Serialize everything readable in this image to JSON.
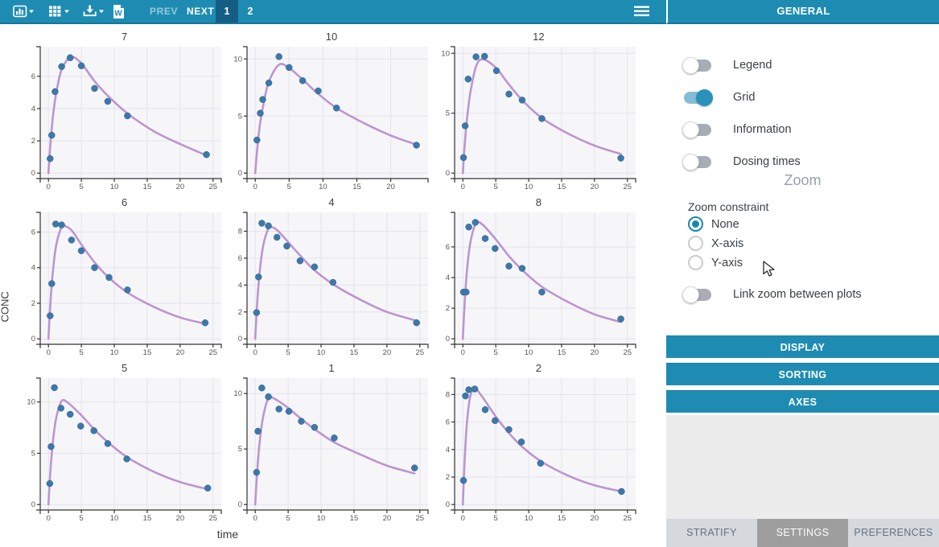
{
  "toolbar": {
    "icons": [
      {
        "name": "chart-type-menu",
        "glyph": "bar-chart"
      },
      {
        "name": "table-menu",
        "glyph": "grid-table"
      },
      {
        "name": "export-menu",
        "glyph": "download"
      },
      {
        "name": "word-report",
        "glyph": "word-document"
      }
    ],
    "prev_label": "PREV",
    "next_label": "NEXT",
    "pages": [
      "1",
      "2"
    ],
    "active_page": "1"
  },
  "sidebar": {
    "header": "GENERAL",
    "toggles": [
      {
        "label": "Legend",
        "on": false
      },
      {
        "label": "Grid",
        "on": true
      },
      {
        "label": "Information",
        "on": false
      },
      {
        "label": "Dosing times",
        "on": false
      }
    ],
    "zoom_section": {
      "title": "Zoom",
      "constraint_label": "Zoom constraint",
      "options": [
        {
          "label": "None",
          "selected": true
        },
        {
          "label": "X-axis",
          "selected": false
        },
        {
          "label": "Y-axis",
          "selected": false
        }
      ],
      "link_toggle": {
        "label": "Link zoom between plots",
        "on": false
      }
    },
    "accordions": [
      {
        "label": "DISPLAY"
      },
      {
        "label": "SORTING"
      },
      {
        "label": "AXES"
      }
    ],
    "tabs": [
      {
        "label": "STRATIFY",
        "active": false
      },
      {
        "label": "SETTINGS",
        "active": true
      },
      {
        "label": "PREFERENCES",
        "active": false
      }
    ]
  },
  "colors": {
    "toolbar": "#1e8cb2",
    "accent": "#1b87ad",
    "fit_line": "#b78ccb",
    "observation_point": "#3d78a8",
    "panel_bg": "#f6f6f9",
    "grid_line": "#e3e3ea"
  },
  "chart_data": {
    "type": "scatter",
    "xlabel": "time",
    "ylabel": "CONC",
    "grid": true,
    "legend": false,
    "xticks_default": [
      0,
      5,
      10,
      15,
      20,
      25
    ],
    "xlim_default": [
      0,
      25
    ],
    "series_note": "blue dots = observed concentrations, purple curve = individual model fit",
    "subplots": [
      {
        "id": "7",
        "xlim": [
          0,
          25
        ],
        "xticks": [
          0,
          5,
          10,
          15,
          20,
          25
        ],
        "ylim": [
          0,
          7.5
        ],
        "yticks": [
          0,
          2,
          4,
          6
        ],
        "points": [
          [
            0.25,
            0.9
          ],
          [
            0.5,
            2.35
          ],
          [
            1,
            5.05
          ],
          [
            2,
            6.6
          ],
          [
            3.3,
            7.15
          ],
          [
            5,
            6.65
          ],
          [
            7,
            5.25
          ],
          [
            9,
            4.45
          ],
          [
            12,
            3.55
          ],
          [
            24,
            1.15
          ]
        ],
        "line": [
          [
            0,
            0
          ],
          [
            0.3,
            1.8
          ],
          [
            0.7,
            3.6
          ],
          [
            1.2,
            5.0
          ],
          [
            2,
            6.4
          ],
          [
            3.4,
            7.2
          ],
          [
            5,
            6.8
          ],
          [
            7,
            5.7
          ],
          [
            9,
            4.8
          ],
          [
            12,
            3.7
          ],
          [
            16,
            2.6
          ],
          [
            20,
            1.8
          ],
          [
            24,
            1.1
          ]
        ]
      },
      {
        "id": "10",
        "xlim": [
          0,
          24.3
        ],
        "xticks": [
          0,
          5,
          10,
          15,
          20
        ],
        "ylim": [
          0,
          10.6
        ],
        "yticks": [
          0,
          5,
          10
        ],
        "points": [
          [
            0.25,
            2.9
          ],
          [
            0.75,
            5.25
          ],
          [
            1.1,
            6.45
          ],
          [
            2,
            7.9
          ],
          [
            3.5,
            10.2
          ],
          [
            5,
            9.25
          ],
          [
            7,
            8.1
          ],
          [
            9.3,
            7.2
          ],
          [
            12,
            5.7
          ],
          [
            23.8,
            2.45
          ]
        ],
        "line": [
          [
            0,
            0
          ],
          [
            0.3,
            2.2
          ],
          [
            0.7,
            4.3
          ],
          [
            1.2,
            6.0
          ],
          [
            2,
            8.0
          ],
          [
            3.5,
            9.5
          ],
          [
            5,
            9.2
          ],
          [
            7,
            8.2
          ],
          [
            9,
            7.1
          ],
          [
            12,
            5.7
          ],
          [
            16,
            4.4
          ],
          [
            20,
            3.3
          ],
          [
            23.8,
            2.5
          ]
        ]
      },
      {
        "id": "12",
        "xlim": [
          0,
          25
        ],
        "xticks": [
          0,
          5,
          10,
          15,
          20,
          25
        ],
        "ylim": [
          0,
          10.1
        ],
        "yticks": [
          0,
          5,
          10
        ],
        "points": [
          [
            0.1,
            1.3
          ],
          [
            0.35,
            3.95
          ],
          [
            0.8,
            7.85
          ],
          [
            2,
            9.7
          ],
          [
            3.3,
            9.75
          ],
          [
            5.1,
            8.55
          ],
          [
            7,
            6.6
          ],
          [
            9,
            6.1
          ],
          [
            12,
            4.55
          ],
          [
            24,
            1.25
          ]
        ],
        "line": [
          [
            0,
            0
          ],
          [
            0.3,
            2.5
          ],
          [
            0.7,
            4.9
          ],
          [
            1.2,
            6.9
          ],
          [
            2,
            8.9
          ],
          [
            3,
            9.5
          ],
          [
            5,
            8.8
          ],
          [
            7,
            7.4
          ],
          [
            9,
            6.1
          ],
          [
            12,
            4.6
          ],
          [
            16,
            3.3
          ],
          [
            20,
            2.3
          ],
          [
            24,
            1.6
          ]
        ]
      },
      {
        "id": "6",
        "xlim": [
          0,
          25
        ],
        "xticks": [
          0,
          5,
          10,
          15,
          20,
          25
        ],
        "ylim": [
          0,
          6.8
        ],
        "yticks": [
          0,
          2,
          4,
          6
        ],
        "points": [
          [
            0.25,
            1.3
          ],
          [
            0.5,
            3.1
          ],
          [
            1.1,
            6.45
          ],
          [
            2,
            6.4
          ],
          [
            3.5,
            5.55
          ],
          [
            5,
            4.95
          ],
          [
            7,
            4.0
          ],
          [
            9.2,
            3.45
          ],
          [
            12,
            2.75
          ],
          [
            23.8,
            0.9
          ]
        ],
        "line": [
          [
            0,
            0
          ],
          [
            0.3,
            2.0
          ],
          [
            0.7,
            3.9
          ],
          [
            1.2,
            5.3
          ],
          [
            2,
            6.3
          ],
          [
            2.4,
            6.35
          ],
          [
            3.5,
            6.1
          ],
          [
            5,
            5.3
          ],
          [
            7,
            4.3
          ],
          [
            9,
            3.5
          ],
          [
            12,
            2.6
          ],
          [
            16,
            1.8
          ],
          [
            20,
            1.2
          ],
          [
            23.8,
            0.85
          ]
        ]
      },
      {
        "id": "4",
        "xlim": [
          0,
          25
        ],
        "xticks": [
          0,
          5,
          10,
          15,
          20,
          25
        ],
        "ylim": [
          0,
          9.0
        ],
        "yticks": [
          0,
          2,
          4,
          6,
          8
        ],
        "points": [
          [
            0.2,
            1.95
          ],
          [
            0.5,
            4.6
          ],
          [
            1,
            8.6
          ],
          [
            2,
            8.4
          ],
          [
            3.3,
            7.55
          ],
          [
            4.8,
            6.9
          ],
          [
            6.8,
            5.8
          ],
          [
            9,
            5.35
          ],
          [
            11.8,
            4.2
          ],
          [
            24.5,
            1.2
          ]
        ],
        "line": [
          [
            0,
            0
          ],
          [
            0.3,
            2.7
          ],
          [
            0.7,
            5.1
          ],
          [
            1.2,
            6.9
          ],
          [
            2,
            8.2
          ],
          [
            2.6,
            8.3
          ],
          [
            3.5,
            8.0
          ],
          [
            5,
            7.2
          ],
          [
            7,
            6.1
          ],
          [
            9,
            5.1
          ],
          [
            12,
            4.0
          ],
          [
            16,
            2.9
          ],
          [
            20,
            2.0
          ],
          [
            24.5,
            1.35
          ]
        ]
      },
      {
        "id": "8",
        "xlim": [
          0,
          25
        ],
        "xticks": [
          0,
          5,
          10,
          15,
          20,
          25
        ],
        "ylim": [
          0,
          7.9
        ],
        "yticks": [
          0,
          2,
          4,
          6
        ],
        "points": [
          [
            0.1,
            3.05
          ],
          [
            0.5,
            3.05
          ],
          [
            0.9,
            7.3
          ],
          [
            1.9,
            7.6
          ],
          [
            3.4,
            6.55
          ],
          [
            4.9,
            5.9
          ],
          [
            7,
            4.75
          ],
          [
            9,
            4.6
          ],
          [
            12,
            3.05
          ],
          [
            24,
            1.3
          ]
        ],
        "line": [
          [
            0,
            0
          ],
          [
            0.3,
            2.5
          ],
          [
            0.7,
            4.8
          ],
          [
            1.2,
            6.4
          ],
          [
            2,
            7.55
          ],
          [
            3,
            7.45
          ],
          [
            5,
            6.5
          ],
          [
            7,
            5.4
          ],
          [
            9,
            4.5
          ],
          [
            12,
            3.4
          ],
          [
            16,
            2.4
          ],
          [
            20,
            1.6
          ],
          [
            24,
            1.1
          ]
        ]
      },
      {
        "id": "5",
        "xlim": [
          0,
          25
        ],
        "xticks": [
          0,
          5,
          10,
          15,
          20,
          25
        ],
        "ylim": [
          0,
          11.8
        ],
        "yticks": [
          0,
          5,
          10
        ],
        "points": [
          [
            0.2,
            2.05
          ],
          [
            0.4,
            5.65
          ],
          [
            0.9,
            11.4
          ],
          [
            1.9,
            9.4
          ],
          [
            3.3,
            8.8
          ],
          [
            4.9,
            7.65
          ],
          [
            6.9,
            7.2
          ],
          [
            9,
            5.95
          ],
          [
            11.9,
            4.45
          ],
          [
            24.2,
            1.6
          ]
        ],
        "line": [
          [
            0,
            0
          ],
          [
            0.3,
            3.3
          ],
          [
            0.7,
            6.3
          ],
          [
            1.2,
            8.5
          ],
          [
            2,
            10.1
          ],
          [
            3,
            9.9
          ],
          [
            5,
            8.7
          ],
          [
            7,
            7.3
          ],
          [
            9,
            6.1
          ],
          [
            12,
            4.6
          ],
          [
            16,
            3.2
          ],
          [
            20,
            2.2
          ],
          [
            24.2,
            1.5
          ]
        ]
      },
      {
        "id": "1",
        "xlim": [
          0,
          25
        ],
        "xticks": [
          0,
          5,
          10,
          15,
          20,
          25
        ],
        "ylim": [
          0,
          10.9
        ],
        "yticks": [
          0,
          5,
          10
        ],
        "points": [
          [
            0.2,
            2.9
          ],
          [
            0.4,
            6.6
          ],
          [
            1,
            10.5
          ],
          [
            2,
            9.7
          ],
          [
            3.6,
            8.6
          ],
          [
            5.1,
            8.4
          ],
          [
            7,
            7.5
          ],
          [
            9,
            6.95
          ],
          [
            12,
            6.0
          ],
          [
            24.2,
            3.3
          ]
        ],
        "line": [
          [
            0,
            0
          ],
          [
            0.3,
            3.0
          ],
          [
            0.7,
            5.8
          ],
          [
            1.2,
            7.9
          ],
          [
            2,
            9.6
          ],
          [
            3,
            9.5
          ],
          [
            5,
            8.7
          ],
          [
            7,
            7.7
          ],
          [
            9,
            6.8
          ],
          [
            12,
            5.6
          ],
          [
            16,
            4.5
          ],
          [
            20,
            3.5
          ],
          [
            24.2,
            2.8
          ]
        ]
      },
      {
        "id": "2",
        "xlim": [
          0,
          25
        ],
        "xticks": [
          0,
          5,
          10,
          15,
          20,
          25
        ],
        "ylim": [
          0,
          8.8
        ],
        "yticks": [
          0,
          2,
          4,
          6,
          8
        ],
        "points": [
          [
            0.1,
            1.75
          ],
          [
            0.4,
            7.9
          ],
          [
            0.9,
            8.35
          ],
          [
            1.8,
            8.4
          ],
          [
            3.4,
            6.9
          ],
          [
            4.9,
            6.1
          ],
          [
            7,
            5.45
          ],
          [
            8.9,
            4.55
          ],
          [
            11.8,
            3.0
          ],
          [
            24.1,
            0.95
          ]
        ],
        "line": [
          [
            0,
            0
          ],
          [
            0.25,
            3.0
          ],
          [
            0.6,
            5.8
          ],
          [
            1.1,
            7.8
          ],
          [
            1.8,
            8.45
          ],
          [
            3,
            7.8
          ],
          [
            5,
            6.4
          ],
          [
            7,
            5.2
          ],
          [
            9,
            4.2
          ],
          [
            12,
            3.1
          ],
          [
            16,
            2.1
          ],
          [
            20,
            1.4
          ],
          [
            24.1,
            0.95
          ]
        ]
      }
    ]
  }
}
